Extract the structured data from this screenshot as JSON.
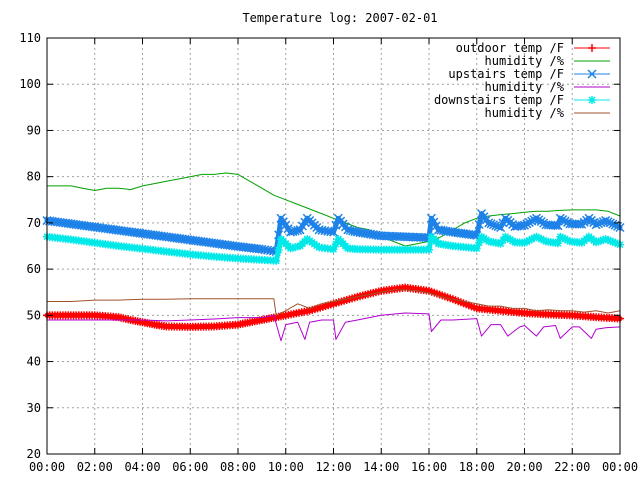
{
  "chart_data": {
    "type": "line",
    "title": "Temperature log: 2007-02-01",
    "xlabel": "",
    "ylabel": "",
    "xlim": [
      "00:00",
      "24:00"
    ],
    "ylim": [
      20,
      110
    ],
    "x_ticks": [
      "00:00",
      "02:00",
      "04:00",
      "06:00",
      "08:00",
      "10:00",
      "12:00",
      "14:00",
      "16:00",
      "18:00",
      "20:00",
      "22:00",
      "00:00"
    ],
    "y_ticks": [
      20,
      30,
      40,
      50,
      60,
      70,
      80,
      90,
      100,
      110
    ],
    "grid": true,
    "legend_position": "top-right",
    "series": [
      {
        "name": "outdoor temp /F",
        "color": "#ff0000",
        "marker": "plus",
        "x": [
          0,
          1,
          2,
          3,
          3.5,
          4,
          4.5,
          5,
          6,
          7,
          8,
          8.5,
          9,
          9.5,
          10,
          11,
          12,
          13,
          14,
          15,
          16,
          17,
          18,
          19,
          20,
          21,
          22,
          23,
          24
        ],
        "y": [
          50,
          50,
          50,
          49.6,
          49,
          48.5,
          48,
          47.6,
          47.5,
          47.6,
          48,
          48.5,
          49,
          49.5,
          50,
          51,
          52.5,
          54,
          55.3,
          56,
          55.3,
          53.5,
          51.5,
          51,
          50.5,
          50.2,
          50,
          49.6,
          49.3
        ]
      },
      {
        "name": "humidity /%",
        "color": "#00a000",
        "marker": "none",
        "x": [
          0,
          0.5,
          1,
          1.5,
          2,
          2.5,
          3,
          3.5,
          4,
          4.5,
          5,
          5.5,
          6,
          6.5,
          7,
          7.5,
          8,
          8.5,
          9,
          9.5,
          10,
          10.5,
          11,
          11.5,
          12,
          12.5,
          13,
          13.5,
          14,
          14.5,
          15,
          15.5,
          16,
          16.5,
          17,
          17.5,
          18,
          18.5,
          19,
          19.5,
          20,
          20.5,
          21,
          21.5,
          22,
          22.5,
          23,
          23.5,
          24
        ],
        "y": [
          78,
          78,
          78,
          77.5,
          77,
          77.5,
          77.5,
          77.2,
          78,
          78.5,
          79,
          79.5,
          80,
          80.5,
          80.5,
          80.8,
          80.5,
          79,
          77.5,
          76,
          75,
          74,
          73,
          72,
          71,
          70,
          69,
          68.5,
          67,
          66,
          65,
          65.5,
          66,
          67,
          68.5,
          70,
          71,
          71.5,
          71.8,
          72,
          72.3,
          72.5,
          72.5,
          72.7,
          72.8,
          72.8,
          72.8,
          72.5,
          71.5
        ]
      },
      {
        "name": "upstairs temp /F",
        "color": "#1e82e8",
        "marker": "x",
        "x": [
          0,
          1,
          2,
          3,
          4,
          5,
          6,
          7,
          8,
          9,
          9.6,
          9.8,
          10.2,
          10.6,
          10.9,
          11.4,
          12,
          12.2,
          12.6,
          13,
          14,
          15,
          16,
          16.1,
          16.4,
          17,
          18,
          18.2,
          18.5,
          19,
          19.2,
          19.6,
          20,
          20.5,
          20.9,
          21.4,
          21.5,
          21.9,
          22.4,
          22.7,
          23,
          23.4,
          24
        ],
        "y": [
          70.5,
          69.8,
          69.1,
          68.4,
          67.7,
          67.0,
          66.3,
          65.6,
          64.9,
          64.3,
          63.8,
          71,
          68,
          68.5,
          71,
          68.5,
          68,
          71,
          68.5,
          68,
          67.2,
          67,
          66.8,
          71,
          68.5,
          68,
          67.3,
          72,
          70,
          69,
          71,
          69.2,
          69.5,
          71,
          69.6,
          69.4,
          71,
          69.8,
          69.7,
          71,
          69.6,
          70.5,
          69
        ]
      },
      {
        "name": "humidity /%",
        "color": "#b000d0",
        "marker": "none",
        "x": [
          0,
          1,
          2,
          3,
          4,
          5,
          6,
          7,
          8,
          9,
          9.5,
          9.8,
          10,
          10.5,
          10.8,
          11,
          11.5,
          12,
          12.1,
          12.5,
          13,
          13.5,
          14,
          15,
          16,
          16.1,
          16.5,
          17,
          18,
          18.2,
          18.6,
          19,
          19.3,
          19.8,
          20,
          20.5,
          20.8,
          21.3,
          21.5,
          22,
          22.3,
          22.8,
          23,
          23.4,
          24
        ],
        "y": [
          49,
          49,
          49,
          49,
          49,
          48.8,
          49,
          49.2,
          49.5,
          49.5,
          50,
          44.5,
          48,
          48.5,
          44.8,
          48.5,
          49,
          49,
          44.8,
          48.5,
          49,
          49.5,
          50,
          50.5,
          50.3,
          46.5,
          49,
          49,
          49.3,
          45.5,
          48,
          48,
          45.5,
          47.5,
          47.8,
          45.5,
          47.5,
          47.8,
          45,
          47.5,
          47.5,
          45,
          47,
          47.3,
          47.5
        ]
      },
      {
        "name": "downstairs temp /F",
        "color": "#00e8e8",
        "marker": "star",
        "x": [
          0,
          1,
          2,
          3,
          4,
          5,
          6,
          7,
          8,
          9,
          9.6,
          9.8,
          10.2,
          10.6,
          10.9,
          11.4,
          12,
          12.2,
          12.6,
          13,
          14,
          15,
          16,
          16.1,
          16.4,
          17,
          18,
          18.2,
          18.5,
          19,
          19.2,
          19.6,
          20,
          20.5,
          20.9,
          21.4,
          21.5,
          21.9,
          22.4,
          22.7,
          23,
          23.4,
          24
        ],
        "y": [
          67,
          66.4,
          65.7,
          65.0,
          64.4,
          63.8,
          63.2,
          62.7,
          62.3,
          62.0,
          61.8,
          66.5,
          64.5,
          65,
          66.5,
          64.7,
          64.3,
          66.5,
          64.5,
          64.3,
          64.2,
          64.2,
          64.2,
          67,
          65.5,
          65,
          64.5,
          67,
          66,
          65.5,
          67,
          65.8,
          65.7,
          67,
          66,
          65.6,
          67,
          66,
          65.7,
          67,
          65.8,
          66.5,
          65.3
        ]
      },
      {
        "name": "humidity /%",
        "color": "#a0522d",
        "marker": "none",
        "x": [
          0,
          1,
          2,
          3,
          4,
          5,
          6,
          7,
          8,
          9,
          9.5,
          9.6,
          10,
          10.5,
          11,
          11.5,
          12,
          12.5,
          13,
          13.5,
          14,
          14.5,
          15,
          15.5,
          16,
          16.5,
          17,
          17.5,
          18,
          18.5,
          19,
          19.5,
          20,
          20.5,
          21,
          21.5,
          22,
          22.5,
          23,
          23.5,
          24
        ],
        "y": [
          53,
          53,
          53.3,
          53.3,
          53.5,
          53.5,
          53.6,
          53.6,
          53.6,
          53.6,
          53.6,
          50,
          51,
          52.5,
          51.5,
          52.5,
          53,
          53.5,
          54,
          54.5,
          55,
          55.5,
          55.5,
          55.3,
          54.8,
          54,
          53.5,
          53,
          52.5,
          52,
          52,
          51.5,
          51.5,
          51,
          51.2,
          51,
          51,
          50.7,
          51,
          50.5,
          51
        ]
      }
    ]
  }
}
